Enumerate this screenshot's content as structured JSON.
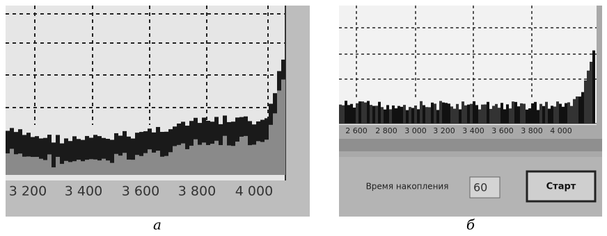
{
  "panel_a": {
    "axis_labels": [
      "3 200",
      "3 400",
      "3 600",
      "3 800",
      "4 000"
    ],
    "caption": "а"
  },
  "panel_b": {
    "axis_labels": [
      "2 600",
      "2 800",
      "3 000",
      "3 200",
      "3 400",
      "3 600",
      "3 800",
      "4 000"
    ],
    "form": {
      "label": "Время накопления",
      "input": "60",
      "button": "Старт"
    },
    "caption": "б"
  }
}
